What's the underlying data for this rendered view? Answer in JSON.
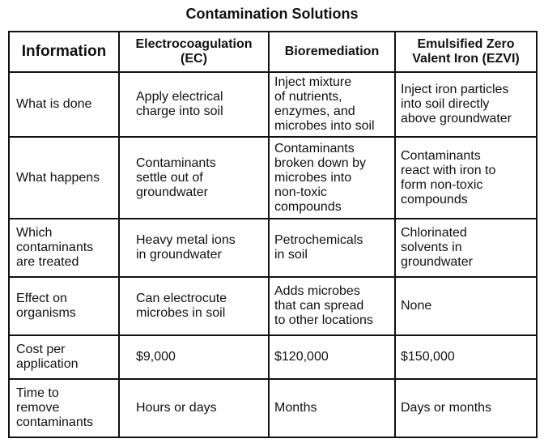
{
  "title": "Contamination Solutions",
  "headers": [
    "Information",
    "Electrocoagulation\n(EC)",
    "Bioremediation",
    "Emulsified Zero\nValent Iron (EZVI)"
  ],
  "rows": [
    {
      "label": "What is done",
      "ec": "Apply electrical\ncharge into soil",
      "bio": "Inject mixture\nof nutrients,\nenzymes, and\nmicrobes into soil",
      "ezvi": "Inject iron particles\ninto soil directly\nabove groundwater"
    },
    {
      "label": "What happens",
      "ec": "Contaminants\nsettle out of\ngroundwater",
      "bio": "Contaminants\nbroken down by\nmicrobes into\nnon-toxic\ncompounds",
      "ezvi": "Contaminants\nreact with iron to\nform non-toxic\ncompounds"
    },
    {
      "label": "Which\ncontaminants\nare treated",
      "ec": "Heavy metal ions\nin groundwater",
      "bio": "Petrochemicals\nin soil",
      "ezvi": "Chlorinated\nsolvents in\ngroundwater"
    },
    {
      "label": "Effect on\norganisms",
      "ec": "Can electrocute\nmicrobes in soil",
      "bio": "Adds microbes\nthat can spread\nto other locations",
      "ezvi": "None"
    },
    {
      "label": "Cost per\napplication",
      "ec": "$9,000",
      "bio": "$120,000",
      "ezvi": "$150,000"
    },
    {
      "label": "Time to\nremove\ncontaminants",
      "ec": "Hours or days",
      "bio": "Months",
      "ezvi": "Days or months"
    }
  ]
}
